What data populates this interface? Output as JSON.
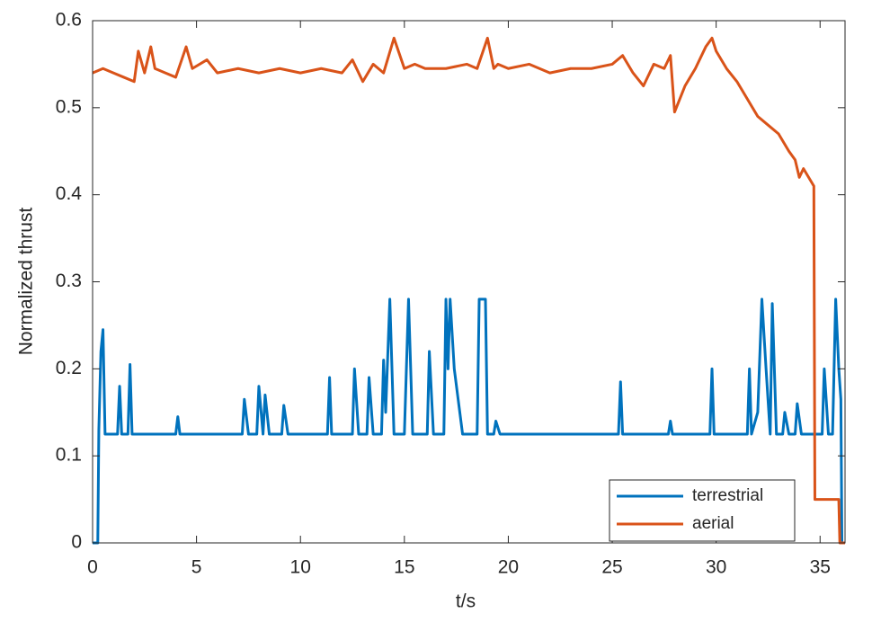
{
  "chart_data": {
    "type": "line",
    "xlabel": "t/s",
    "ylabel": "Normalized thrust",
    "xlim": [
      0,
      36.2
    ],
    "ylim": [
      0,
      0.6
    ],
    "xticks": [
      0,
      5,
      10,
      15,
      20,
      25,
      30,
      35
    ],
    "yticks": [
      0,
      0.1,
      0.2,
      0.3,
      0.4,
      0.5,
      0.6
    ],
    "legend": "lower right",
    "series": [
      {
        "name": "terrestrial",
        "color": "#0072bd",
        "x": [
          0,
          0.25,
          0.3,
          0.4,
          0.5,
          0.6,
          0.7,
          1.2,
          1.3,
          1.4,
          1.7,
          1.8,
          1.9,
          4.0,
          4.1,
          4.2,
          7.2,
          7.3,
          7.5,
          7.9,
          8.0,
          8.2,
          8.3,
          8.5,
          9.1,
          9.2,
          9.4,
          11.3,
          11.4,
          11.5,
          12.5,
          12.6,
          12.8,
          13.2,
          13.3,
          13.5,
          13.9,
          14.0,
          14.1,
          14.3,
          14.5,
          15.0,
          15.2,
          15.4,
          16.1,
          16.2,
          16.4,
          16.9,
          17.0,
          17.1,
          17.2,
          17.4,
          17.8,
          18.0,
          18.5,
          18.6,
          18.9,
          19.0,
          19.3,
          19.4,
          19.6,
          25.3,
          25.4,
          25.5,
          27.7,
          27.8,
          27.9,
          29.7,
          29.8,
          29.9,
          31.5,
          31.6,
          31.7,
          32.0,
          32.2,
          32.4,
          32.6,
          32.7,
          32.9,
          33.2,
          33.3,
          33.5,
          33.8,
          33.9,
          34.1,
          35.1,
          35.2,
          35.4,
          35.6,
          35.75,
          35.9,
          36.0,
          36.05,
          36.2
        ],
        "values": [
          0,
          0,
          0.13,
          0.22,
          0.245,
          0.125,
          0.125,
          0.125,
          0.18,
          0.125,
          0.125,
          0.205,
          0.125,
          0.125,
          0.145,
          0.125,
          0.125,
          0.165,
          0.125,
          0.125,
          0.18,
          0.125,
          0.17,
          0.125,
          0.125,
          0.158,
          0.125,
          0.125,
          0.19,
          0.125,
          0.125,
          0.2,
          0.125,
          0.125,
          0.19,
          0.125,
          0.125,
          0.21,
          0.15,
          0.28,
          0.125,
          0.125,
          0.28,
          0.125,
          0.125,
          0.22,
          0.125,
          0.125,
          0.28,
          0.2,
          0.28,
          0.2,
          0.125,
          0.125,
          0.125,
          0.28,
          0.28,
          0.125,
          0.125,
          0.14,
          0.125,
          0.125,
          0.185,
          0.125,
          0.125,
          0.14,
          0.125,
          0.125,
          0.2,
          0.125,
          0.125,
          0.2,
          0.125,
          0.15,
          0.28,
          0.2,
          0.125,
          0.275,
          0.125,
          0.125,
          0.15,
          0.125,
          0.125,
          0.16,
          0.125,
          0.125,
          0.2,
          0.125,
          0.125,
          0.28,
          0.2,
          0.165,
          0,
          0
        ]
      },
      {
        "name": "aerial",
        "color": "#d95319",
        "x": [
          0,
          0.5,
          1,
          1.5,
          2,
          2.2,
          2.5,
          2.8,
          3.0,
          3.5,
          4,
          4.5,
          4.8,
          5.5,
          6,
          7,
          8,
          9,
          10,
          11,
          12,
          12.5,
          13,
          13.5,
          14,
          14.5,
          15,
          15.5,
          16,
          17,
          18,
          18.5,
          19,
          19.3,
          19.5,
          20,
          21,
          22,
          23,
          24,
          25,
          25.5,
          26,
          26.5,
          27,
          27.5,
          27.8,
          28,
          28.5,
          29,
          29.5,
          29.8,
          30,
          30.5,
          31,
          31.5,
          32,
          32.5,
          33,
          33.5,
          33.8,
          34,
          34.2,
          34.7,
          34.75,
          35.9,
          35.95,
          36.2
        ],
        "values": [
          0.54,
          0.545,
          0.54,
          0.535,
          0.53,
          0.565,
          0.54,
          0.57,
          0.545,
          0.54,
          0.535,
          0.57,
          0.545,
          0.555,
          0.54,
          0.545,
          0.54,
          0.545,
          0.54,
          0.545,
          0.54,
          0.555,
          0.53,
          0.55,
          0.54,
          0.58,
          0.545,
          0.55,
          0.545,
          0.545,
          0.55,
          0.545,
          0.58,
          0.545,
          0.55,
          0.545,
          0.55,
          0.54,
          0.545,
          0.545,
          0.55,
          0.56,
          0.54,
          0.525,
          0.55,
          0.545,
          0.56,
          0.495,
          0.525,
          0.545,
          0.57,
          0.58,
          0.565,
          0.545,
          0.53,
          0.51,
          0.49,
          0.48,
          0.47,
          0.45,
          0.44,
          0.42,
          0.43,
          0.41,
          0.05,
          0.05,
          0,
          0
        ]
      }
    ]
  }
}
